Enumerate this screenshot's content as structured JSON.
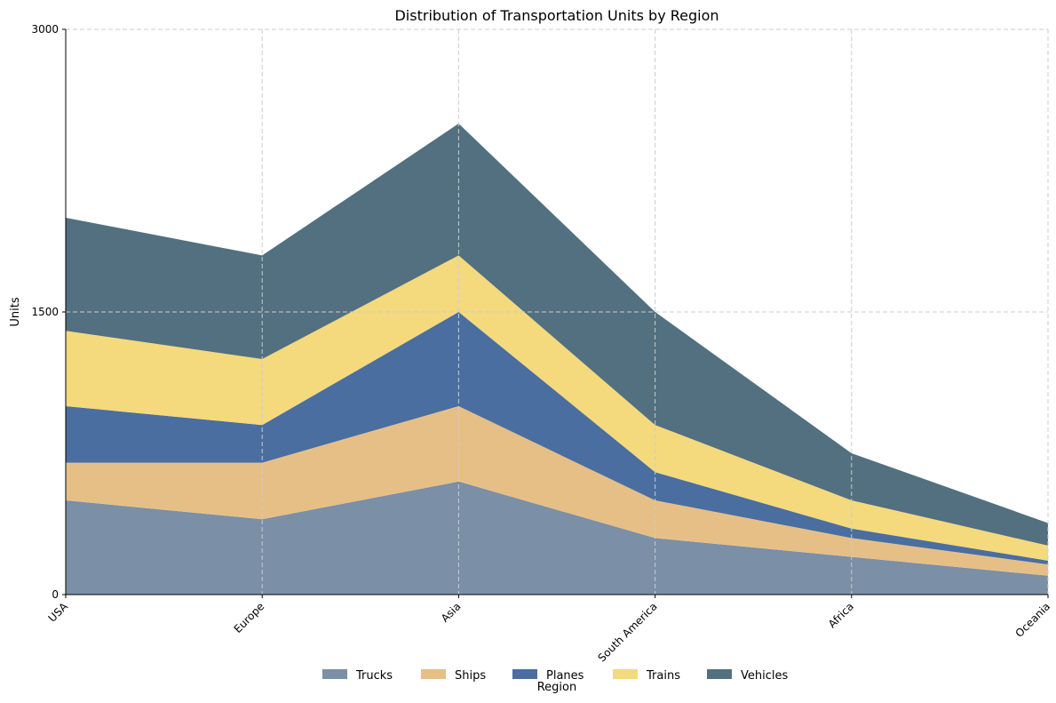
{
  "chart_data": {
    "type": "area",
    "stacked": true,
    "title": "Distribution of Transportation Units by Region",
    "xlabel": "Region",
    "ylabel": "Units",
    "categories": [
      "USA",
      "Europe",
      "Asia",
      "South America",
      "Africa",
      "Oceania"
    ],
    "series": [
      {
        "name": "Trucks",
        "color": "#7b8fa6",
        "values": [
          500,
          400,
          600,
          300,
          200,
          100
        ]
      },
      {
        "name": "Ships",
        "color": "#e6bf86",
        "values": [
          200,
          300,
          400,
          200,
          100,
          60
        ]
      },
      {
        "name": "Planes",
        "color": "#4a6e9f",
        "values": [
          300,
          200,
          500,
          150,
          50,
          20
        ]
      },
      {
        "name": "Trains",
        "color": "#f4d97d",
        "values": [
          400,
          350,
          300,
          250,
          150,
          80
        ]
      },
      {
        "name": "Vehicles",
        "color": "#52707f",
        "values": [
          600,
          550,
          700,
          600,
          250,
          120
        ]
      }
    ],
    "ylim": [
      0,
      3000
    ],
    "yticks": [
      0,
      1500,
      3000
    ],
    "grid": true,
    "legend_position": "bottom-center"
  }
}
